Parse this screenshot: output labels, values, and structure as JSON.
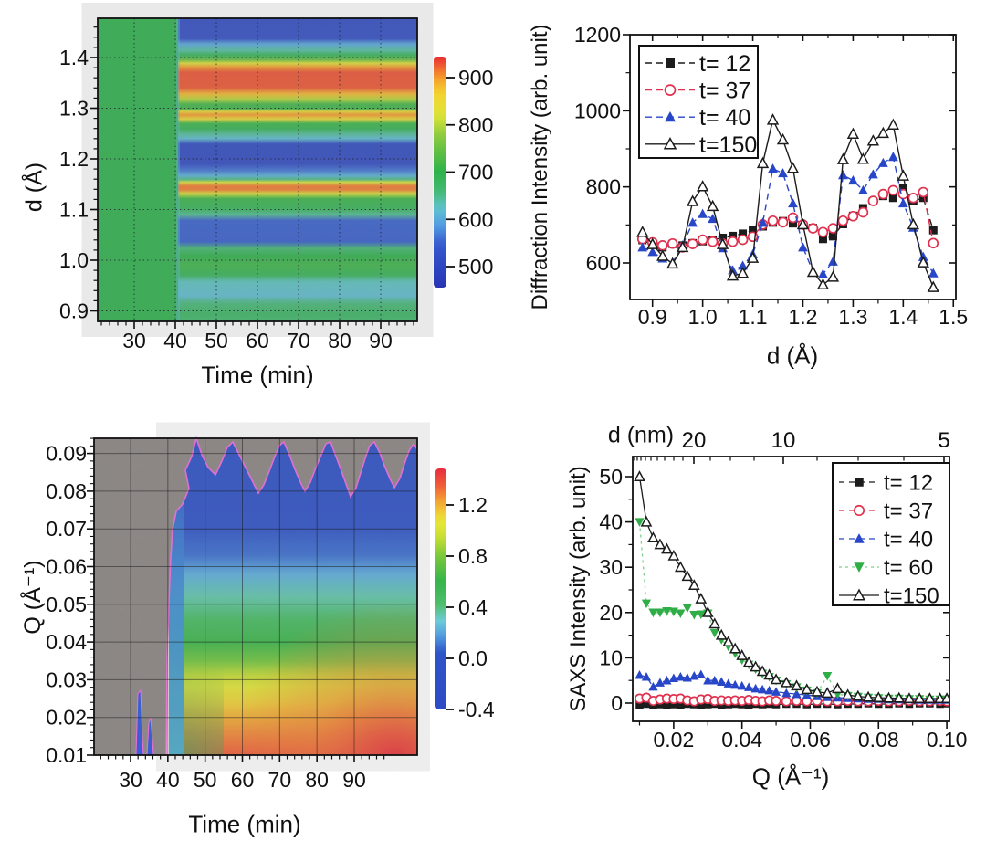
{
  "figure": {
    "type": "scientific-figure",
    "background": "#ffffff",
    "panels": [
      "diffraction-map",
      "diffraction-profiles",
      "saxs-map",
      "saxs-profiles"
    ]
  },
  "chart_data": [
    {
      "id": "diffraction-map",
      "type": "heatmap",
      "position": "top-left",
      "xlabel": "Time (min)",
      "ylabel": "d (Å)",
      "xticks": [
        "30",
        "40",
        "50",
        "60",
        "70",
        "80",
        "90"
      ],
      "xtick_values": [
        30,
        40,
        50,
        60,
        70,
        80,
        90
      ],
      "yticks": [
        "1.4",
        "1.3",
        "1.2",
        "1.1",
        "1.0",
        "0.9"
      ],
      "ytick_values": [
        1.4,
        1.3,
        1.2,
        1.1,
        1.0,
        0.9
      ],
      "xlim": [
        21,
        99
      ],
      "ylim": [
        0.884,
        1.477
      ],
      "grid": "dotted",
      "colorbar": {
        "ticks": [
          "900",
          "800",
          "700",
          "600",
          "500"
        ],
        "tick_values": [
          900,
          800,
          700,
          600,
          500
        ],
        "range": [
          455,
          944
        ]
      },
      "colormap": [
        [
          455,
          "#2834b4"
        ],
        [
          545,
          "#3458cd"
        ],
        [
          590,
          "#54a0e3"
        ],
        [
          625,
          "#60c4cd"
        ],
        [
          655,
          "#46ba78"
        ],
        [
          700,
          "#2db24a"
        ],
        [
          775,
          "#87ca3e"
        ],
        [
          820,
          "#dee437"
        ],
        [
          868,
          "#f5d230"
        ],
        [
          900,
          "#f59a2b"
        ],
        [
          928,
          "#ee5232"
        ],
        [
          948,
          "#e6232e"
        ]
      ],
      "features": {
        "uniform_before_t": 40,
        "uniform_value": 700,
        "band_profile": [
          [
            1.477,
            515
          ],
          [
            1.437,
            518
          ],
          [
            1.427,
            598
          ],
          [
            1.414,
            640
          ],
          [
            1.405,
            688
          ],
          [
            1.396,
            745
          ],
          [
            1.389,
            830
          ],
          [
            1.381,
            902
          ],
          [
            1.371,
            928
          ],
          [
            1.341,
            926
          ],
          [
            1.329,
            882
          ],
          [
            1.318,
            798
          ],
          [
            1.309,
            718
          ],
          [
            1.3,
            714
          ],
          [
            1.295,
            848
          ],
          [
            1.288,
            900
          ],
          [
            1.28,
            845
          ],
          [
            1.271,
            712
          ],
          [
            1.261,
            690
          ],
          [
            1.251,
            645
          ],
          [
            1.242,
            618
          ],
          [
            1.231,
            510
          ],
          [
            1.192,
            508
          ],
          [
            1.179,
            565
          ],
          [
            1.169,
            608
          ],
          [
            1.162,
            650
          ],
          [
            1.156,
            820
          ],
          [
            1.149,
            912
          ],
          [
            1.142,
            912
          ],
          [
            1.134,
            818
          ],
          [
            1.124,
            710
          ],
          [
            1.104,
            685
          ],
          [
            1.093,
            645
          ],
          [
            1.081,
            550
          ],
          [
            1.04,
            548
          ],
          [
            1.027,
            660
          ],
          [
            1.013,
            700
          ],
          [
            0.994,
            714
          ],
          [
            0.975,
            688
          ],
          [
            0.961,
            630
          ],
          [
            0.934,
            618
          ],
          [
            0.919,
            655
          ],
          [
            0.899,
            676
          ],
          [
            0.884,
            668
          ]
        ]
      }
    },
    {
      "id": "diffraction-profiles",
      "type": "line",
      "position": "top-right",
      "xlabel": "d (Å)",
      "ylabel": "Diffraction Intensity (arb. unit)",
      "xticks": [
        "0.9",
        "1.0",
        "1.1",
        "1.2",
        "1.3",
        "1.4",
        "1.5"
      ],
      "xtick_values": [
        0.9,
        1.0,
        1.1,
        1.2,
        1.3,
        1.4,
        1.5
      ],
      "yticks": [
        "600",
        "800",
        "1000",
        "1200"
      ],
      "ytick_values": [
        600,
        800,
        1000,
        1200
      ],
      "xlim": [
        0.855,
        1.505
      ],
      "ylim": [
        505,
        1230
      ],
      "legend_position": "top-left",
      "x": [
        0.88,
        0.9,
        0.92,
        0.94,
        0.96,
        0.98,
        1.0,
        1.02,
        1.04,
        1.06,
        1.08,
        1.1,
        1.12,
        1.14,
        1.16,
        1.18,
        1.2,
        1.22,
        1.24,
        1.26,
        1.28,
        1.3,
        1.32,
        1.34,
        1.36,
        1.38,
        1.4,
        1.42,
        1.44,
        1.46
      ],
      "series": [
        {
          "name": "t= 12",
          "marker": "filled-square",
          "color": "#1c1c1c",
          "line_color": "#1c1c1c",
          "dash": "7 5",
          "values": [
            660,
            648,
            641,
            650,
            646,
            652,
            657,
            661,
            666,
            671,
            677,
            686,
            696,
            706,
            710,
            704,
            699,
            692,
            663,
            670,
            702,
            724,
            744,
            762,
            776,
            771,
            796,
            763,
            771,
            686
          ]
        },
        {
          "name": "t= 37",
          "marker": "open-circle",
          "color": "#e0314e",
          "line_color": "#e0314e",
          "dash": "7 5",
          "values": [
            663,
            654,
            646,
            651,
            641,
            650,
            661,
            656,
            651,
            656,
            661,
            669,
            701,
            711,
            707,
            719,
            701,
            691,
            681,
            691,
            711,
            723,
            733,
            763,
            781,
            791,
            781,
            771,
            786,
            652
          ]
        },
        {
          "name": "t= 40",
          "marker": "filled-triangle-up",
          "color": "#2847c8",
          "line_color": "#2847c8",
          "dash": "7 5",
          "values": [
            641,
            629,
            612,
            601,
            646,
            706,
            729,
            716,
            639,
            581,
            593,
            623,
            706,
            848,
            836,
            757,
            641,
            577,
            571,
            604,
            831,
            817,
            791,
            833,
            863,
            879,
            757,
            693,
            616,
            573
          ]
        },
        {
          "name": "t=150",
          "marker": "open-triangle-up",
          "color": "#1c1c1c",
          "line_color": "#1c1c1c",
          "dash": "",
          "values": [
            681,
            649,
            618,
            598,
            641,
            762,
            801,
            749,
            649,
            566,
            573,
            613,
            862,
            976,
            924,
            849,
            701,
            576,
            543,
            563,
            872,
            939,
            873,
            921,
            941,
            963,
            829,
            701,
            601,
            536
          ]
        }
      ]
    },
    {
      "id": "saxs-map",
      "type": "heatmap",
      "position": "bottom-left",
      "xlabel": "Time (min)",
      "ylabel": "Q (Å⁻¹)",
      "xticks": [
        "30",
        "40",
        "50",
        "60",
        "70",
        "80",
        "90"
      ],
      "xtick_values": [
        30,
        40,
        50,
        60,
        70,
        80,
        90
      ],
      "yticks": [
        "0.09",
        "0.08",
        "0.07",
        "0.06",
        "0.05",
        "0.04",
        "0.03",
        "0.02",
        "0.01"
      ],
      "ytick_values": [
        0.09,
        0.08,
        0.07,
        0.06,
        0.05,
        0.04,
        0.03,
        0.02,
        0.01
      ],
      "xlim": [
        20,
        100
      ],
      "ylim": [
        0.01,
        0.094
      ],
      "grid": "solid",
      "colorbar": {
        "ticks": [
          "1.2",
          "0.8",
          "0.4",
          "0.0",
          "-0.4"
        ],
        "tick_values": [
          1.2,
          0.8,
          0.4,
          0.0,
          -0.4
        ],
        "range": [
          -0.4,
          1.49
        ]
      },
      "colormap": [
        [
          -0.45,
          "#2d4ac4"
        ],
        [
          0.05,
          "#2f55c8"
        ],
        [
          0.18,
          "#549ee0"
        ],
        [
          0.3,
          "#6ecdd7"
        ],
        [
          0.42,
          "#50be6e"
        ],
        [
          0.6,
          "#34b44b"
        ],
        [
          0.8,
          "#78c83c"
        ],
        [
          0.95,
          "#c8de32"
        ],
        [
          1.08,
          "#ebe837"
        ],
        [
          1.22,
          "#f5aa32"
        ],
        [
          1.35,
          "#f05f37"
        ],
        [
          1.5,
          "#e62840"
        ]
      ],
      "features": {
        "no_data_region": "grey speckle before t=40 min and above Q=0.085 (jagged boundary with magenta edge)",
        "no_data_before_t": 40,
        "q_profile_after_transition": [
          [
            0.094,
            -0.25
          ],
          [
            0.08,
            -0.16
          ],
          [
            0.07,
            -0.05
          ],
          [
            0.063,
            0.1
          ],
          [
            0.058,
            0.22
          ],
          [
            0.052,
            0.35
          ],
          [
            0.046,
            0.48
          ],
          [
            0.04,
            0.62
          ],
          [
            0.035,
            0.78
          ],
          [
            0.031,
            0.95
          ],
          [
            0.028,
            1.05
          ],
          [
            0.024,
            1.13
          ],
          [
            0.02,
            1.21
          ],
          [
            0.015,
            1.29
          ],
          [
            0.01,
            1.36
          ]
        ],
        "notes": "intensity increases toward low Q and late time; red maximum at bottom-right"
      }
    },
    {
      "id": "saxs-profiles",
      "type": "line",
      "position": "bottom-right",
      "xlabel": "Q (Å⁻¹)",
      "ylabel": "SAXS Intensity (arb. unit)",
      "top_axis": {
        "label": "d (nm)",
        "ticks": [
          "20",
          "10",
          "5"
        ],
        "tick_values": [
          20,
          10,
          5
        ]
      },
      "xticks": [
        "0.02",
        "0.04",
        "0.06",
        "0.08",
        "0.10"
      ],
      "xtick_values": [
        0.02,
        0.04,
        0.06,
        0.08,
        0.1
      ],
      "yticks": [
        "0",
        "10",
        "20",
        "30",
        "40",
        "50"
      ],
      "ytick_values": [
        0,
        10,
        20,
        30,
        40,
        50
      ],
      "xlim": [
        0.008,
        0.1008
      ],
      "ylim": [
        -4,
        54.5
      ],
      "legend_position": "top-right",
      "x": [
        0.01,
        0.012,
        0.014,
        0.016,
        0.018,
        0.02,
        0.022,
        0.024,
        0.026,
        0.028,
        0.03,
        0.032,
        0.034,
        0.036,
        0.038,
        0.04,
        0.042,
        0.044,
        0.046,
        0.048,
        0.05,
        0.053,
        0.056,
        0.059,
        0.062,
        0.065,
        0.068,
        0.071,
        0.074,
        0.077,
        0.08,
        0.083,
        0.086,
        0.089,
        0.092,
        0.095,
        0.098,
        0.1
      ],
      "series": [
        {
          "name": "t= 12",
          "marker": "filled-square",
          "color": "#1c1c1c",
          "line_color": "#1c1c1c",
          "dash": "6 5",
          "values": [
            -0.5,
            -0.2,
            -0.4,
            -0.3,
            -0.5,
            -0.3,
            -0.4,
            -0.2,
            -0.3,
            -0.4,
            -0.3,
            -0.2,
            -0.4,
            -0.3,
            -0.2,
            -0.3,
            -0.4,
            -0.2,
            -0.3,
            -0.2,
            -0.3,
            -0.2,
            -0.2,
            -0.3,
            -0.2,
            -0.2,
            -0.3,
            -0.2,
            -0.2,
            -0.1,
            -0.2,
            -0.2,
            -0.1,
            -0.2,
            -0.1,
            -0.1,
            -0.2,
            -0.1
          ]
        },
        {
          "name": "t= 37",
          "marker": "open-circle",
          "color": "#e0314e",
          "line_color": "#e0314e",
          "dash": "6 5",
          "values": [
            1.0,
            1.2,
            0.5,
            0.8,
            1.0,
            0.9,
            1.0,
            0.6,
            0.4,
            0.8,
            0.9,
            0.5,
            0.6,
            0.5,
            0.6,
            0.5,
            0.7,
            0.5,
            0.4,
            0.6,
            0.5,
            0.4,
            0.5,
            0.4,
            0.5,
            0.4,
            0.4,
            0.5,
            0.4,
            0.4,
            0.5,
            0.4,
            0.4,
            0.5,
            0.4,
            0.4,
            0.5,
            0.4
          ]
        },
        {
          "name": "t= 40",
          "marker": "filled-triangle-up",
          "color": "#2847c8",
          "line_color": "#2847c8",
          "dash": "6 5",
          "values": [
            6.2,
            5.8,
            3.6,
            4.5,
            5.0,
            5.5,
            5.8,
            5.6,
            6.0,
            6.3,
            5.0,
            5.0,
            4.7,
            4.3,
            4.0,
            3.8,
            3.5,
            3.2,
            3.0,
            2.8,
            2.5,
            2.2,
            2.0,
            1.8,
            1.5,
            1.3,
            1.2,
            1.1,
            1.0,
            0.9,
            0.9,
            0.8,
            0.8,
            0.8,
            0.7,
            0.7,
            0.7,
            0.7
          ]
        },
        {
          "name": "t= 60",
          "marker": "filled-triangle-down",
          "color": "#2fae48",
          "line_color": "#7ecf8e",
          "dash": "3 4",
          "values": [
            40,
            22,
            20,
            20,
            20.3,
            20.2,
            19.8,
            21,
            19.5,
            19.6,
            19.8,
            15.5,
            14,
            12.5,
            11,
            9.5,
            8.5,
            7.5,
            6.5,
            5.8,
            5,
            4.2,
            3.5,
            2.8,
            2.2,
            6,
            2,
            1.6,
            1.4,
            1.2,
            1.1,
            1.0,
            1.0,
            0.9,
            0.9,
            0.8,
            0.8,
            0.8
          ]
        },
        {
          "name": "t=150",
          "marker": "open-triangle-up",
          "color": "#1c1c1c",
          "line_color": "#1c1c1c",
          "dash": "",
          "values": [
            50,
            40,
            36.5,
            35,
            34,
            32.5,
            30,
            28,
            26,
            23,
            20,
            17.5,
            15,
            13.5,
            12,
            10.5,
            9,
            8,
            7,
            6.2,
            5.2,
            4.5,
            3.8,
            3,
            2.5,
            2.2,
            3.2,
            1.8,
            1.5,
            1.3,
            1.2,
            1.1,
            1.1,
            1.0,
            1.0,
            1.0,
            1.0,
            1.0
          ]
        }
      ]
    }
  ]
}
